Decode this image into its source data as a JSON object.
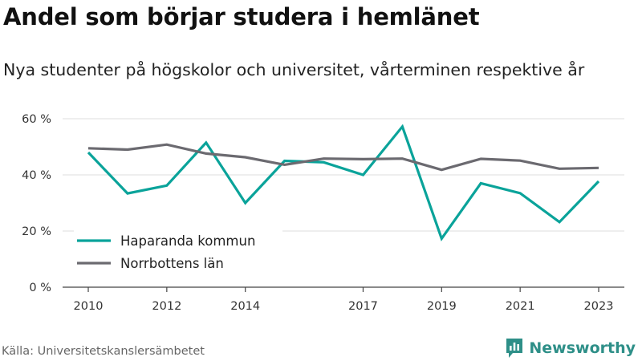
{
  "title": "Andel som börjar studera i hemlänet",
  "subtitle": "Nya studenter på högskolor och universitet, vårterminen respektive år",
  "source": "Källa: Universitetskanslersämbetet",
  "brand": {
    "name": "Newsworthy",
    "icon": "bar-chart-logo-icon",
    "color": "#2e8f88"
  },
  "chart_data": {
    "type": "line",
    "x": [
      2010,
      2011,
      2012,
      2013,
      2014,
      2015,
      2016,
      2017,
      2018,
      2019,
      2020,
      2021,
      2022,
      2023
    ],
    "x_ticks": [
      2010,
      2012,
      2014,
      2017,
      2019,
      2021,
      2023
    ],
    "x_tick_labels": [
      "2010",
      "2012",
      "2014",
      "2017",
      "2019",
      "2021",
      "2023"
    ],
    "ylim": [
      0,
      60
    ],
    "y_ticks": [
      0,
      20,
      40,
      60
    ],
    "y_tick_labels": [
      "0 %",
      "20 %",
      "40 %",
      "60 %"
    ],
    "grid": true,
    "legend_position": "bottom-left",
    "series": [
      {
        "name": "Haparanda kommun",
        "color": "#0aa39a",
        "values": [
          48.0,
          33.4,
          36.2,
          51.5,
          30.0,
          45.0,
          44.5,
          40.0,
          57.2,
          17.3,
          37.0,
          33.5,
          23.2,
          37.7
        ]
      },
      {
        "name": "Norrbottens län",
        "color": "#6b6a70",
        "values": [
          49.5,
          49.0,
          50.8,
          47.6,
          46.3,
          43.6,
          45.8,
          45.6,
          45.8,
          41.8,
          45.7,
          45.1,
          42.2,
          42.5
        ]
      }
    ]
  }
}
